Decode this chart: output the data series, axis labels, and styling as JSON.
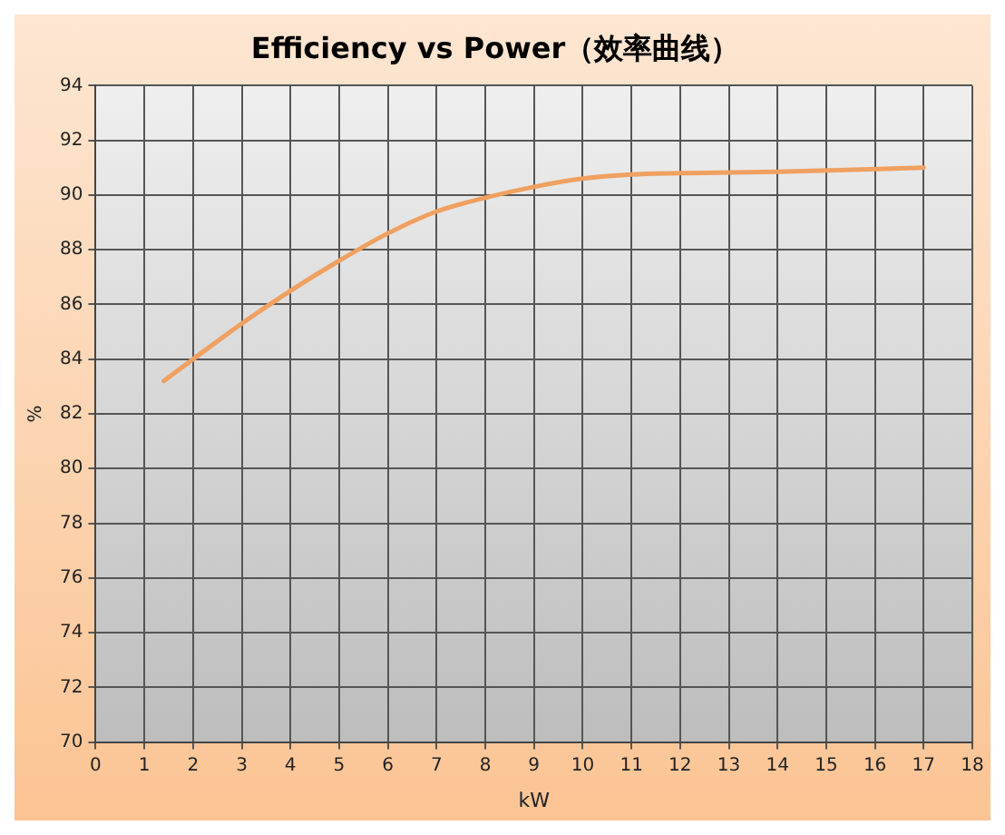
{
  "chart_data": {
    "type": "line",
    "title": "Efficiency vs Power（效率曲线）",
    "xlabel": "kW",
    "ylabel": "%",
    "x": [
      1.4,
      2,
      3,
      4,
      5,
      6,
      7,
      8,
      9,
      10,
      11,
      12,
      14,
      17
    ],
    "series": [
      {
        "color": "#f0a060",
        "values": [
          83.2,
          84.0,
          85.3,
          86.5,
          87.6,
          88.6,
          89.4,
          89.9,
          90.3,
          90.6,
          90.75,
          90.8,
          90.85,
          91.0
        ]
      }
    ],
    "xlim": [
      0,
      18
    ],
    "xticks": [
      0,
      1,
      2,
      3,
      4,
      5,
      6,
      7,
      8,
      9,
      10,
      11,
      12,
      13,
      14,
      15,
      16,
      17,
      18
    ],
    "ylim": [
      70,
      94
    ],
    "yticks": [
      70,
      72,
      74,
      76,
      78,
      80,
      82,
      84,
      86,
      88,
      90,
      92,
      94
    ],
    "grid": true,
    "legend": false,
    "marker": "none",
    "line_style": "solid"
  }
}
